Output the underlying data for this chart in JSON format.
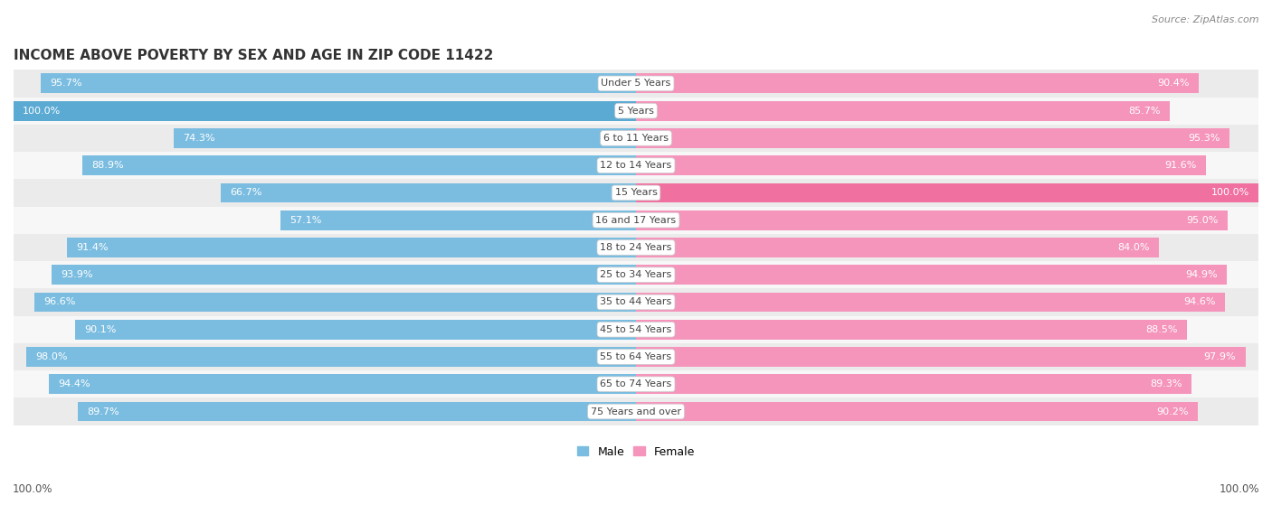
{
  "title": "Income Above Poverty by Sex and Age in Zip Code 11422",
  "source": "Source: ZipAtlas.com",
  "categories": [
    "Under 5 Years",
    "5 Years",
    "6 to 11 Years",
    "12 to 14 Years",
    "15 Years",
    "16 and 17 Years",
    "18 to 24 Years",
    "25 to 34 Years",
    "35 to 44 Years",
    "45 to 54 Years",
    "55 to 64 Years",
    "65 to 74 Years",
    "75 Years and over"
  ],
  "male_values": [
    95.7,
    100.0,
    74.3,
    88.9,
    66.7,
    57.1,
    91.4,
    93.9,
    96.6,
    90.1,
    98.0,
    94.4,
    89.7
  ],
  "female_values": [
    90.4,
    85.7,
    95.3,
    91.6,
    100.0,
    95.0,
    84.0,
    94.9,
    94.6,
    88.5,
    97.9,
    89.3,
    90.2
  ],
  "male_color": "#7bbde0",
  "female_color": "#f595bb",
  "male_color_dark": "#5aaad4",
  "female_color_dark": "#f070a0",
  "row_bg_even": "#ebebeb",
  "row_bg_odd": "#f7f7f7",
  "title_fontsize": 11,
  "value_fontsize": 8,
  "label_fontsize": 8,
  "legend_fontsize": 9,
  "source_fontsize": 8,
  "footer_fontsize": 8.5
}
